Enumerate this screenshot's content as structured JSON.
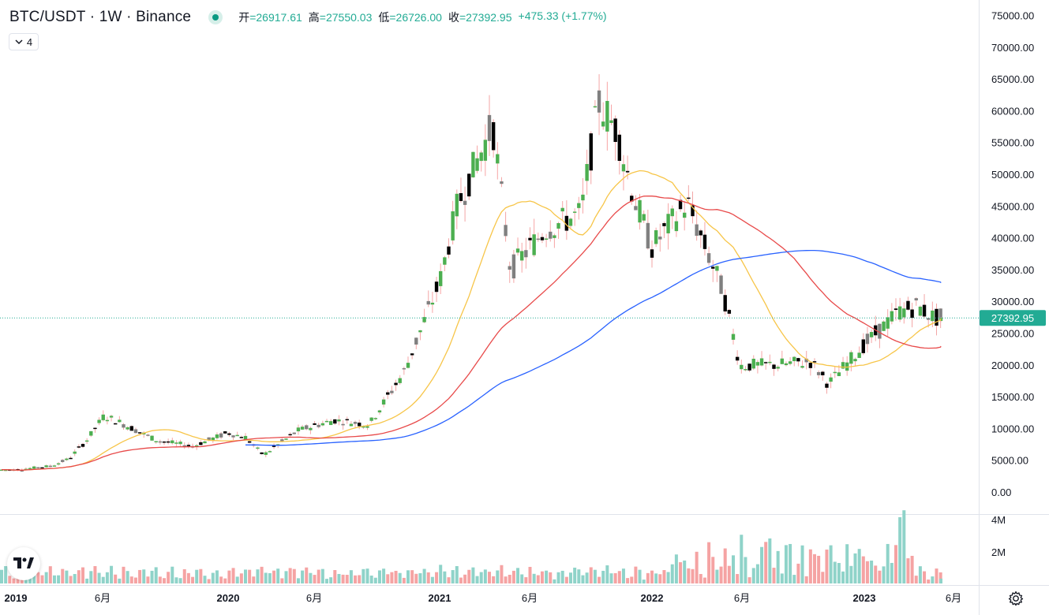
{
  "header": {
    "symbol": "BTC/USDT · 1W · Binance",
    "open_label": "开",
    "open": "=26917.61",
    "high_label": "高",
    "high": "=27550.03",
    "low_label": "低",
    "low": "=26726.00",
    "close_label": "收",
    "close": "=27392.95",
    "change": "+475.33 (+1.77%)"
  },
  "indicators_toggle": {
    "count": "4"
  },
  "price_axis": {
    "labels": [
      "75000.00",
      "70000.00",
      "65000.00",
      "60000.00",
      "55000.00",
      "50000.00",
      "45000.00",
      "40000.00",
      "35000.00",
      "30000.00",
      "25000.00",
      "20000.00",
      "15000.00",
      "10000.00",
      "5000.00",
      "0.00"
    ],
    "current_price": "27392.95"
  },
  "volume_axis": {
    "labels": [
      "4M",
      "2M"
    ]
  },
  "time_axis": [
    {
      "label": "2019",
      "bold": true
    },
    {
      "label": "6月",
      "bold": false
    },
    {
      "label": "2020",
      "bold": true
    },
    {
      "label": "6月",
      "bold": false
    },
    {
      "label": "2021",
      "bold": true
    },
    {
      "label": "6月",
      "bold": false
    },
    {
      "label": "2022",
      "bold": true
    },
    {
      "label": "6月",
      "bold": false
    },
    {
      "label": "2023",
      "bold": true
    },
    {
      "label": "6月",
      "bold": false
    }
  ],
  "colors": {
    "up": "#4caf50",
    "down_black": "#000000",
    "down_gray": "#808080",
    "wick_up": "#f7a5a5",
    "vol_up": "#8fd3c9",
    "vol_down": "#f5a3a3",
    "ma_fast": "#f7c548",
    "ma_mid": "#e84a4a",
    "ma_slow": "#2962ff",
    "price_line": "#22ab94",
    "badge_bg": "#22ab94"
  },
  "icons": {
    "logo": "tradingview-logo-icon",
    "settings": "gear-icon",
    "collapse": "chevron-down-icon"
  },
  "chart_data": {
    "type": "candlestick",
    "symbol": "BTC/USDT",
    "interval": "1W",
    "ylim": [
      0,
      75000
    ],
    "ohlc_points": [
      {
        "t": "2019-01",
        "o": 3700,
        "h": 4100,
        "l": 3400,
        "c": 3500
      },
      {
        "t": "2019-03",
        "o": 3900,
        "h": 4200,
        "l": 3800,
        "c": 4100
      },
      {
        "t": "2019-04",
        "o": 4100,
        "h": 5400,
        "l": 4000,
        "c": 5200
      },
      {
        "t": "2019-05",
        "o": 5700,
        "h": 8500,
        "l": 5600,
        "c": 8100
      },
      {
        "t": "2019-06",
        "o": 8700,
        "h": 13900,
        "l": 8500,
        "c": 12000
      },
      {
        "t": "2019-07",
        "o": 11000,
        "h": 12300,
        "l": 9100,
        "c": 10800
      },
      {
        "t": "2019-09",
        "o": 10000,
        "h": 10600,
        "l": 7800,
        "c": 8100
      },
      {
        "t": "2019-11",
        "o": 8500,
        "h": 9300,
        "l": 6500,
        "c": 7200
      },
      {
        "t": "2020-01",
        "o": 7200,
        "h": 9500,
        "l": 6900,
        "c": 9300
      },
      {
        "t": "2020-02",
        "o": 9300,
        "h": 10500,
        "l": 8500,
        "c": 8600
      },
      {
        "t": "2020-03",
        "o": 7900,
        "h": 8200,
        "l": 3800,
        "c": 5800
      },
      {
        "t": "2020-05",
        "o": 8600,
        "h": 10000,
        "l": 8100,
        "c": 9700
      },
      {
        "t": "2020-07",
        "o": 9100,
        "h": 11400,
        "l": 9000,
        "c": 11300
      },
      {
        "t": "2020-09",
        "o": 11600,
        "h": 12000,
        "l": 10000,
        "c": 10600
      },
      {
        "t": "2020-11",
        "o": 13800,
        "h": 19400,
        "l": 13300,
        "c": 19000
      },
      {
        "t": "2021-01",
        "o": 29000,
        "h": 41900,
        "l": 28000,
        "c": 33100
      },
      {
        "t": "2021-02",
        "o": 33000,
        "h": 58300,
        "l": 32000,
        "c": 45100
      },
      {
        "t": "2021-04",
        "o": 58700,
        "h": 64800,
        "l": 47000,
        "c": 57700
      },
      {
        "t": "2021-05",
        "o": 57700,
        "h": 59500,
        "l": 30000,
        "c": 35000
      },
      {
        "t": "2021-07",
        "o": 33500,
        "h": 42000,
        "l": 29300,
        "c": 41400
      },
      {
        "t": "2021-09",
        "o": 47100,
        "h": 52900,
        "l": 40000,
        "c": 43800
      },
      {
        "t": "2021-10",
        "o": 43800,
        "h": 62000,
        "l": 43300,
        "c": 61300
      },
      {
        "t": "2021-11",
        "o": 61300,
        "h": 69000,
        "l": 53000,
        "c": 57000
      },
      {
        "t": "2021-12",
        "o": 57000,
        "h": 59000,
        "l": 42000,
        "c": 46200
      },
      {
        "t": "2022-01",
        "o": 46200,
        "h": 47900,
        "l": 33000,
        "c": 38500
      },
      {
        "t": "2022-03",
        "o": 43100,
        "h": 48200,
        "l": 37500,
        "c": 45500
      },
      {
        "t": "2022-05",
        "o": 38000,
        "h": 40000,
        "l": 26700,
        "c": 31800
      },
      {
        "t": "2022-06",
        "o": 31800,
        "h": 31900,
        "l": 17600,
        "c": 19900
      },
      {
        "t": "2022-08",
        "o": 23300,
        "h": 25200,
        "l": 19600,
        "c": 20000
      },
      {
        "t": "2022-10",
        "o": 19400,
        "h": 21000,
        "l": 18100,
        "c": 20500
      },
      {
        "t": "2022-11",
        "o": 20500,
        "h": 21500,
        "l": 15500,
        "c": 17000
      },
      {
        "t": "2023-01",
        "o": 16500,
        "h": 23900,
        "l": 16500,
        "c": 23100
      },
      {
        "t": "2023-03",
        "o": 23100,
        "h": 28900,
        "l": 19600,
        "c": 28400
      },
      {
        "t": "2023-04",
        "o": 28400,
        "h": 31000,
        "l": 27000,
        "c": 29200
      },
      {
        "t": "2023-05",
        "o": 26917.61,
        "h": 27550.03,
        "l": 26726.0,
        "c": 27392.95
      }
    ],
    "moving_averages": [
      {
        "name": "MA fast",
        "color": "#f7c548"
      },
      {
        "name": "MA mid",
        "color": "#e84a4a"
      },
      {
        "name": "MA slow",
        "color": "#2962ff"
      }
    ],
    "grid": false,
    "last_price": 27392.95
  }
}
